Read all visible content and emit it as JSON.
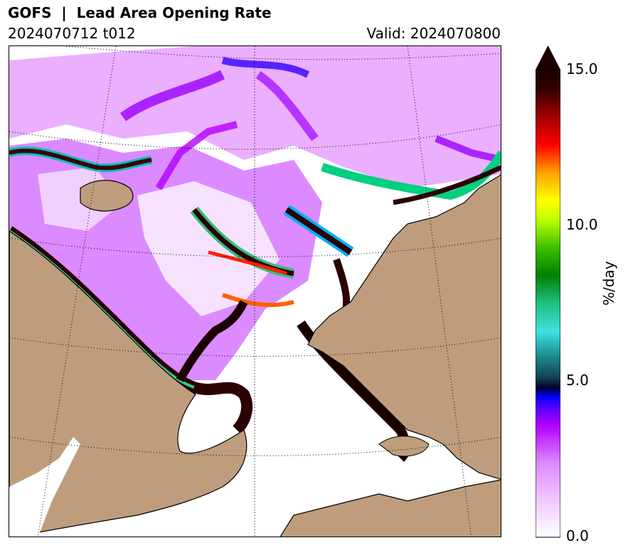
{
  "title": "GOFS  |  Lead Area Opening Rate",
  "run": "2024070712 t012",
  "valid": "Valid: 2024070800",
  "colorbar": {
    "label": "%/day",
    "ticks": [
      "0.0",
      "5.0",
      "10.0",
      "15.0"
    ],
    "range": [
      0,
      15
    ],
    "extend": "max"
  },
  "colors": {
    "land": "#bf9d7c",
    "ocean_low": "#ffffff",
    "purple": "#b000ff",
    "light_purple": "#e79cff",
    "blue": "#0000ff",
    "teal": "#1aa0a0",
    "green": "#33cc33",
    "yellow": "#ffff00",
    "red": "#ff0000",
    "max": "#1a0000"
  }
}
